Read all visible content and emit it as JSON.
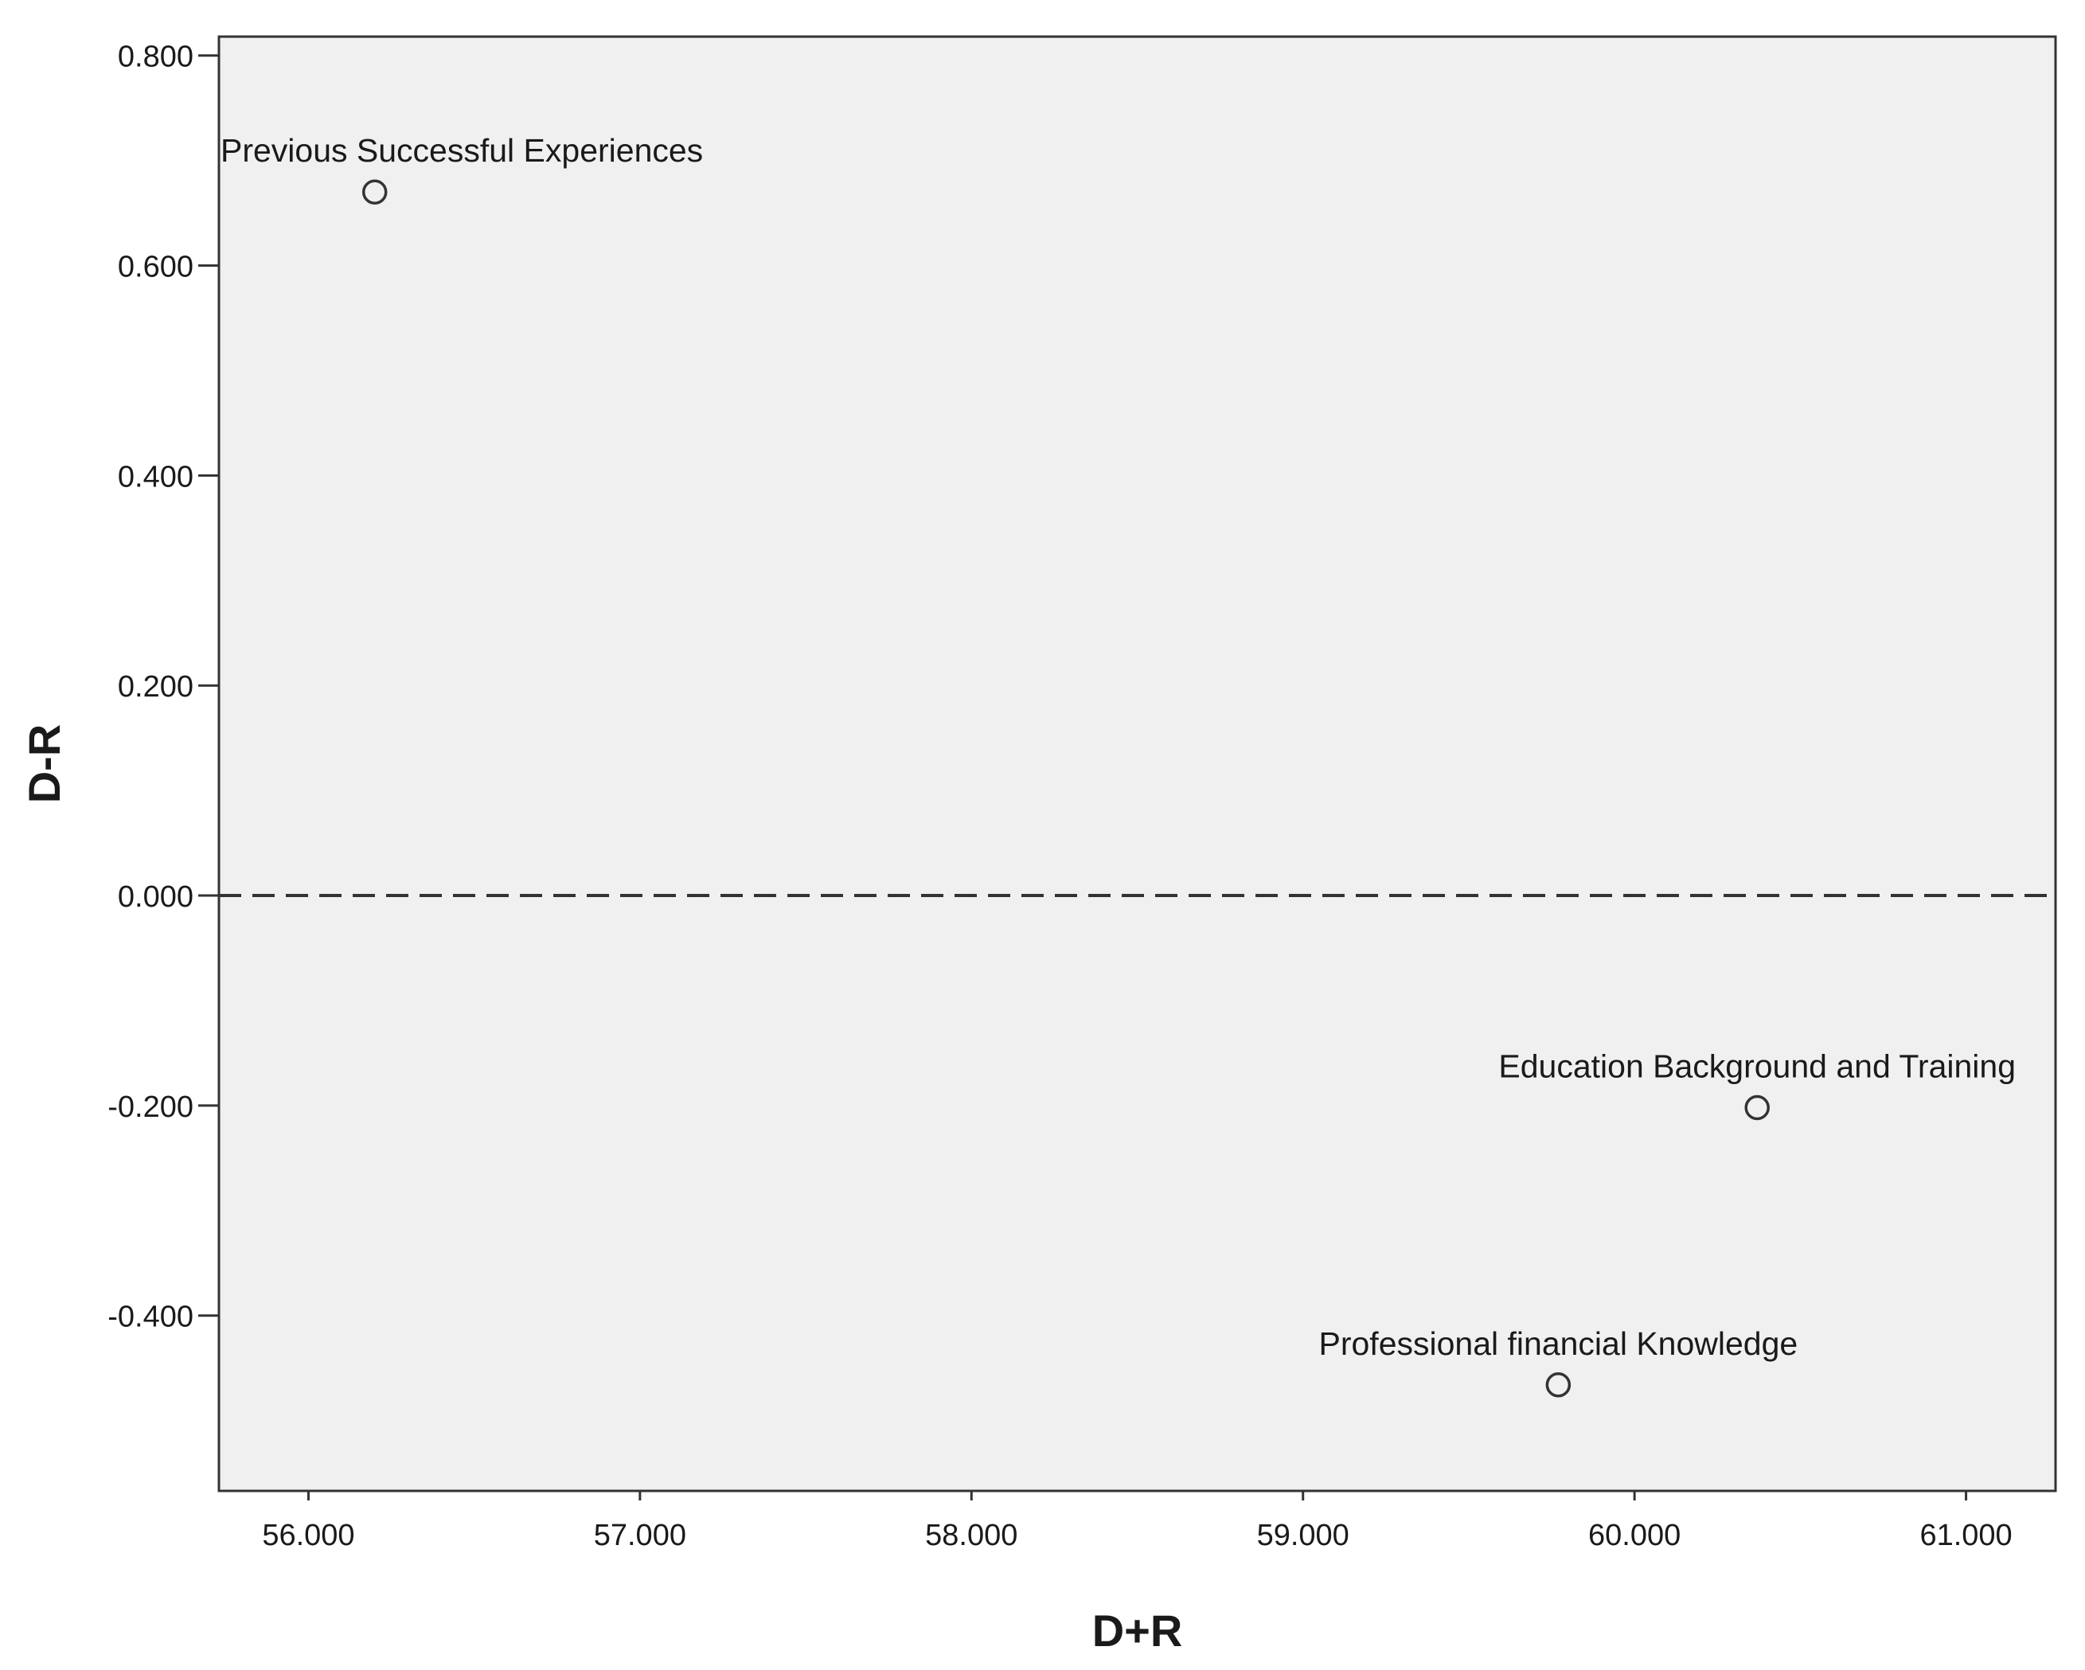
{
  "chart_data": {
    "type": "scatter",
    "title": "",
    "xlabel": "D+R",
    "ylabel": "D-R",
    "xlim": [
      55.73,
      61.27
    ],
    "ylim": [
      -0.567,
      0.818
    ],
    "x_ticks": [
      56.0,
      57.0,
      58.0,
      59.0,
      60.0,
      61.0
    ],
    "x_tick_labels": [
      "56.000",
      "57.000",
      "58.000",
      "59.000",
      "60.000",
      "61.000"
    ],
    "y_ticks": [
      0.8,
      0.6,
      0.4,
      0.2,
      0.0,
      -0.2,
      -0.4
    ],
    "y_tick_labels": [
      "0.800",
      "0.600",
      "0.400",
      "0.200",
      "0.000",
      "-0.200",
      "-0.400"
    ],
    "reference_line": {
      "axis": "y",
      "value": 0.0,
      "style": "dashed"
    },
    "grid": false,
    "legend": "none",
    "colors": {
      "plot_background": "#f0f0f0",
      "frame": "#333333",
      "marker_stroke": "#333333",
      "reference_line": "#333333"
    },
    "points": [
      {
        "label": "Previous Successful Experiences",
        "x": 56.2,
        "y": 0.67
      },
      {
        "label": "Education Background and Training",
        "x": 60.37,
        "y": -0.202
      },
      {
        "label": "Professional financial Knowledge",
        "x": 59.77,
        "y": -0.466
      }
    ]
  }
}
